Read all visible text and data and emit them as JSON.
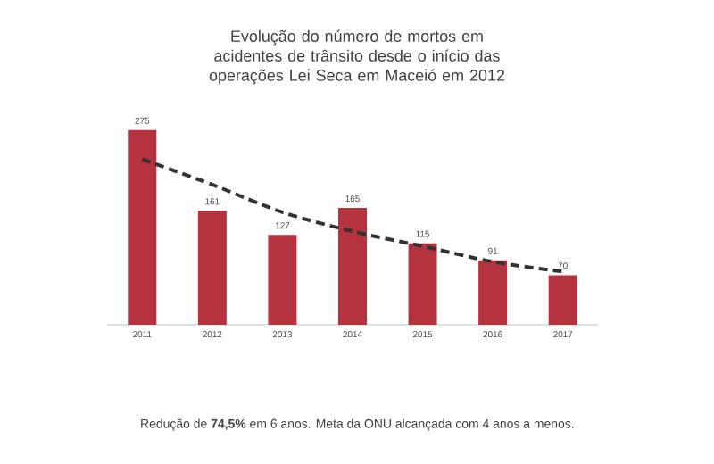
{
  "chart_data": {
    "type": "bar",
    "title": "Evolução do número de mortos em acidentes de trânsito desde o início das operações Lei Seca em Maceió em 2012",
    "categories": [
      "2011",
      "2012",
      "2013",
      "2014",
      "2015",
      "2016",
      "2017"
    ],
    "series": [
      {
        "color": "#b5323f",
        "values": [
          275,
          161,
          127,
          165,
          115,
          91,
          70
        ],
        "value_labels": [
          "275",
          "161",
          "127",
          "165",
          "115",
          "91",
          "70"
        ]
      },
      {
        "type": "line",
        "color": "#333333",
        "line_style": "dashed",
        "values": [
          234,
          198,
          159,
          132,
          111,
          89,
          75
        ]
      }
    ],
    "annotations": [
      "Redução de **74,5%** em 6 anos. Meta da ONU alcançada com 4 anos a menos."
    ]
  }
}
